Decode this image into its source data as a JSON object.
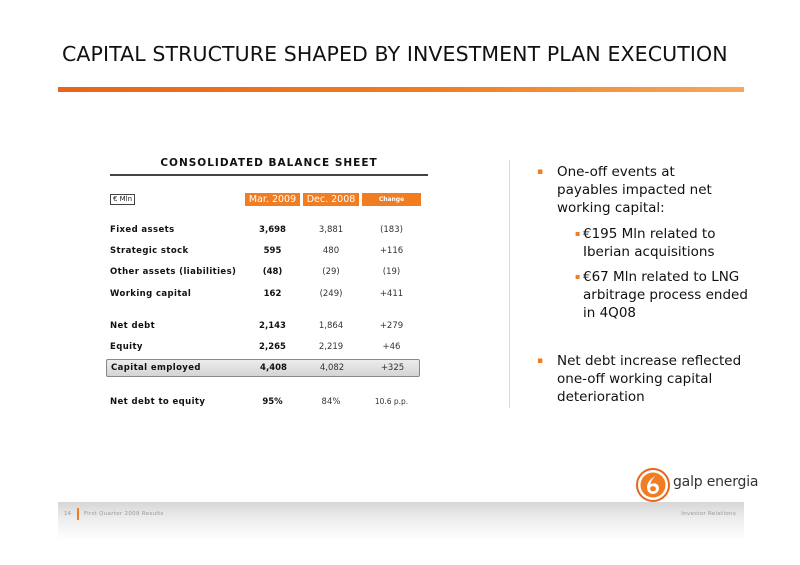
{
  "slide": {
    "title": "CAPITAL STRUCTURE SHAPED BY INVESTMENT PLAN EXECUTION",
    "accent_color": "#f07d22"
  },
  "balance_sheet": {
    "title": "CONSOLIDATED BALANCE SHEET",
    "unit": "€ Mln",
    "headers": [
      "Mar. 2009",
      "Dec. 2008",
      "Change"
    ],
    "rows": [
      {
        "label": "Fixed assets",
        "mar2009": "3,698",
        "dec2008": "3,881",
        "change": "(183)"
      },
      {
        "label": "Strategic stock",
        "mar2009": "595",
        "dec2008": "480",
        "change": "+116"
      },
      {
        "label": "Other assets (liabilities)",
        "mar2009": "(48)",
        "dec2008": "(29)",
        "change": "(19)"
      },
      {
        "label": "Working capital",
        "mar2009": "162",
        "dec2008": "(249)",
        "change": "+411"
      },
      {
        "label": "Net debt",
        "mar2009": "2,143",
        "dec2008": "1,864",
        "change": "+279"
      },
      {
        "label": "Equity",
        "mar2009": "2,265",
        "dec2008": "2,219",
        "change": "+46"
      },
      {
        "label": "Capital employed",
        "mar2009": "4,408",
        "dec2008": "4,082",
        "change": "+325"
      },
      {
        "label": "Net debt to equity",
        "mar2009": "95%",
        "dec2008": "84%",
        "change": "10.6 p.p."
      }
    ]
  },
  "bullets": [
    {
      "marker": "▪",
      "text": "One-off events at payables impacted net working capital:"
    },
    {
      "marker": "▪",
      "text": "€195 Mln related to Iberian acquisitions"
    },
    {
      "marker": "▪",
      "text": "€67 Mln related to LNG arbitrage process ended in 4Q08"
    },
    {
      "marker": "▪",
      "text": "Net debt increase reflected one-off working capital deterioration"
    }
  ],
  "logo": {
    "text": "galp energia",
    "icon": "galp-flame-logo-icon"
  },
  "footer": {
    "page": "14",
    "left": "First Quarter 2009 Results",
    "right": "Investor Relations"
  }
}
